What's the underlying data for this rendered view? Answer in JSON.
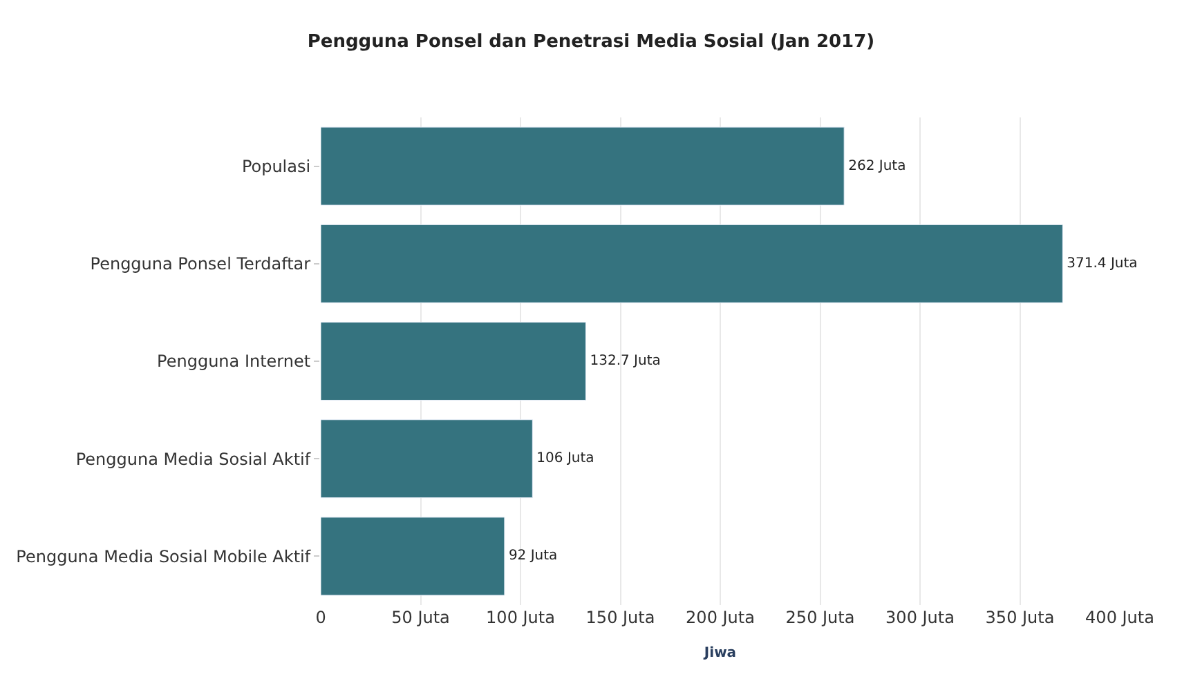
{
  "chart_data": {
    "type": "bar",
    "orientation": "horizontal",
    "title": "Pengguna Ponsel dan Penetrasi Media Sosial (Jan 2017)",
    "xlabel": "Jiwa",
    "categories": [
      "Populasi",
      "Pengguna Ponsel Terdaftar",
      "Pengguna Internet",
      "Pengguna Media Sosial Aktif",
      "Pengguna Media Sosial Mobile Aktif"
    ],
    "values": [
      262,
      371.4,
      132.7,
      106,
      92
    ],
    "value_labels": [
      "262 Juta",
      "371.4 Juta",
      "132.7 Juta",
      "106 Juta",
      "92 Juta"
    ],
    "color": "#35737f",
    "xlim": [
      0,
      400
    ],
    "xticks": [
      0,
      {
        "value": 50,
        "label": "50 Juta"
      },
      {
        "value": 100,
        "label": "100 Juta"
      },
      {
        "value": 150,
        "label": "150 Juta"
      },
      {
        "value": 200,
        "label": "200 Juta"
      },
      {
        "value": 250,
        "label": "250 Juta"
      },
      {
        "value": 300,
        "label": "300 Juta"
      },
      {
        "value": 350,
        "label": "350 Juta"
      },
      {
        "value": 400,
        "label": "400 Juta"
      }
    ],
    "grid": "x",
    "legend": false
  }
}
